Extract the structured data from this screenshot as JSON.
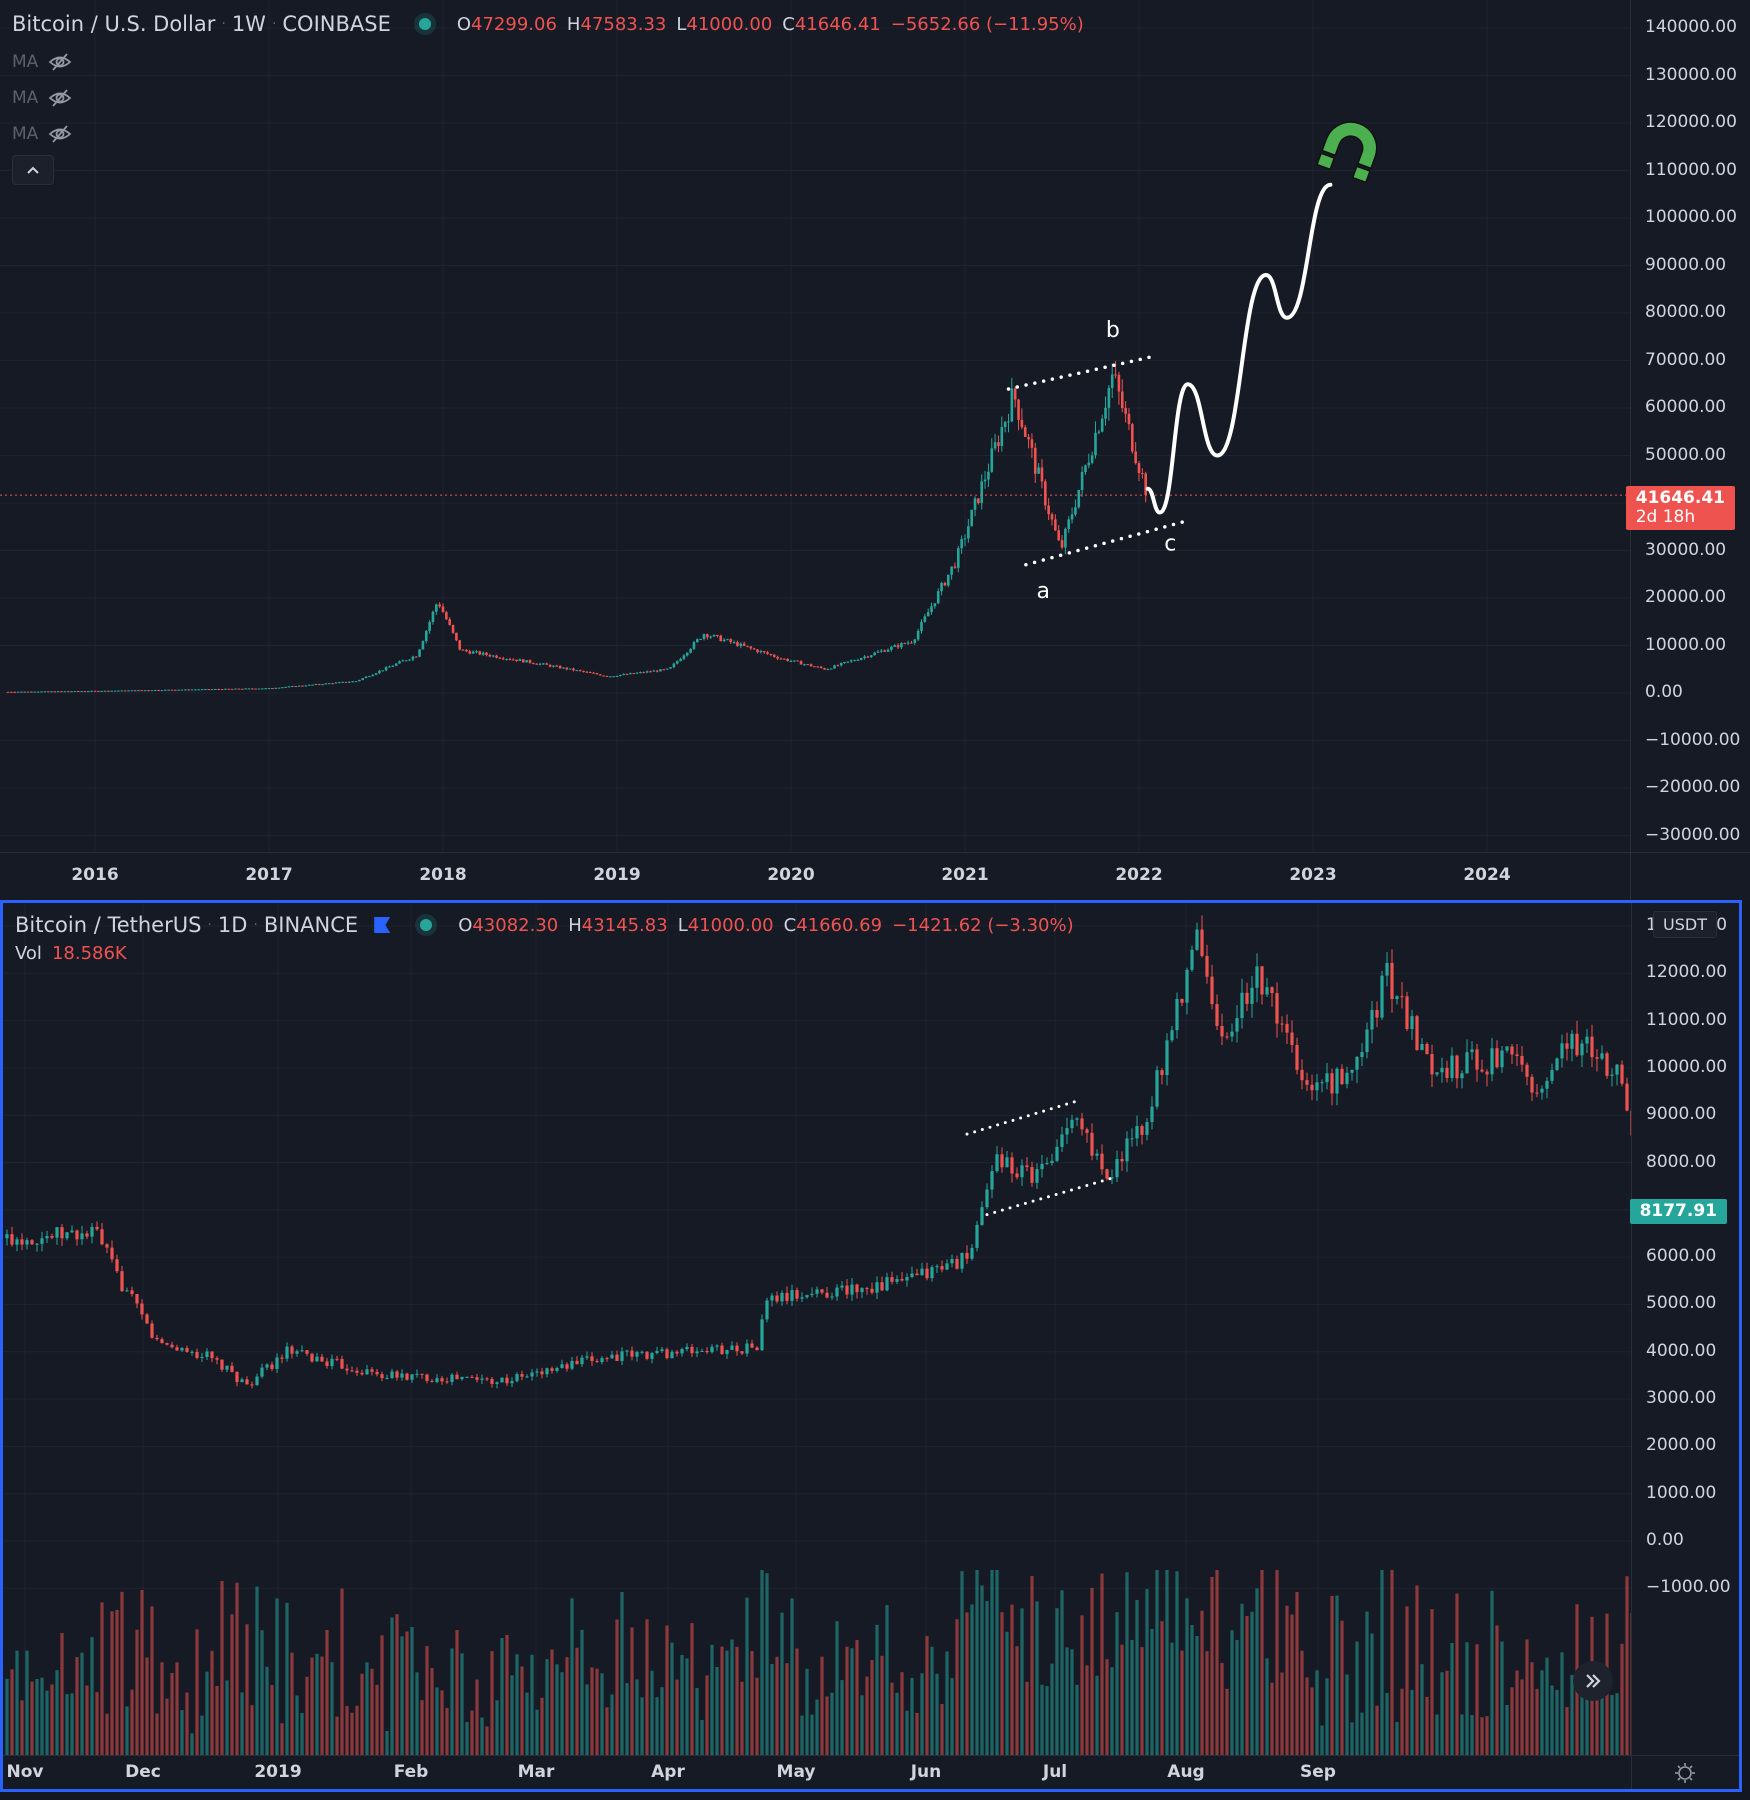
{
  "colors": {
    "up": "#26a69a",
    "down": "#ef5350",
    "background": "#161a25",
    "grid": "#1f2330",
    "axis_text": "#d1d4dc",
    "active_pane_border": "#2962ff",
    "drawing": "#ffffff",
    "magnet": "#4caf50",
    "price_line": "#ef5350"
  },
  "top_pane": {
    "legend": {
      "symbol": "Bitcoin / U.S. Dollar",
      "interval": "1W",
      "exchange": "COINBASE",
      "ohlc": {
        "open_label": "O",
        "open": "47299.06",
        "high_label": "H",
        "high": "47583.33",
        "low_label": "L",
        "low": "41000.00",
        "close_label": "C",
        "close": "41646.41",
        "change": "−5652.66 (−11.95%)"
      }
    },
    "indicators": [
      {
        "label": "MA",
        "visibility_icon": "eye-off-icon"
      },
      {
        "label": "MA",
        "visibility_icon": "eye-off-icon"
      },
      {
        "label": "MA",
        "visibility_icon": "eye-off-icon"
      }
    ],
    "collapse_icon": "chevron-up-icon",
    "price_tag": {
      "value": "41646.41",
      "countdown": "2d 18h"
    },
    "annotations": {
      "a": "a",
      "b": "b",
      "c": "c"
    },
    "magnet_icon": "magnet-icon"
  },
  "bottom_pane": {
    "legend": {
      "symbol": "Bitcoin / TetherUS",
      "interval": "1D",
      "exchange": "BINANCE",
      "ohlc": {
        "open_label": "O",
        "open": "43082.30",
        "high_label": "H",
        "high": "43145.83",
        "low_label": "L",
        "low": "41000.00",
        "close_label": "C",
        "close": "41660.69",
        "change": "−1421.62 (−3.30%)"
      }
    },
    "volume": {
      "label": "Vol",
      "value": "18.586K"
    },
    "currency_badge": "USDT",
    "price_tag": {
      "value": "8177.91"
    },
    "scroll_button_icon": "double-chevron-right-icon",
    "settings_icon": "gear-icon"
  },
  "chart_data": [
    {
      "type": "candlestick",
      "title": "Bitcoin / U.S. Dollar · 1W · COINBASE",
      "xlabel": "",
      "ylabel": "",
      "x_ticks": [
        "2016",
        "2017",
        "2018",
        "2019",
        "2020",
        "2021",
        "2022",
        "2023",
        "2024"
      ],
      "y_ticks": [
        "140000.00",
        "130000.00",
        "120000.00",
        "110000.00",
        "100000.00",
        "90000.00",
        "80000.00",
        "70000.00",
        "60000.00",
        "50000.00",
        "30000.00",
        "20000.00",
        "10000.00",
        "0.00",
        "−10000.00",
        "−20000.00",
        "−30000.00"
      ],
      "ylim": [
        -30000,
        140000
      ],
      "grid": true,
      "last_price": 41646.41,
      "price_path_anchors": [
        {
          "x": "2015.5",
          "price": 250
        },
        {
          "x": "2016.0",
          "price": 430
        },
        {
          "x": "2017.0",
          "price": 1000
        },
        {
          "x": "2017.5",
          "price": 2500
        },
        {
          "x": "2017.85",
          "price": 8000
        },
        {
          "x": "2017.97",
          "price": 19500
        },
        {
          "x": "2018.1",
          "price": 9000
        },
        {
          "x": "2018.5",
          "price": 6500
        },
        {
          "x": "2018.95",
          "price": 3500
        },
        {
          "x": "2019.3",
          "price": 5000
        },
        {
          "x": "2019.5",
          "price": 12500
        },
        {
          "x": "2019.95",
          "price": 7200
        },
        {
          "x": "2020.2",
          "price": 5000
        },
        {
          "x": "2020.7",
          "price": 11000
        },
        {
          "x": "2020.95",
          "price": 28000
        },
        {
          "x": "2021.28",
          "price": 63000
        },
        {
          "x": "2021.55",
          "price": 30000
        },
        {
          "x": "2021.85",
          "price": 67000
        },
        {
          "x": "2022.05",
          "price": 41646
        }
      ],
      "drawings": {
        "channel_upper": [
          {
            "x": "2021.25",
            "price": 64000
          },
          {
            "x": "2022.1",
            "price": 71000
          }
        ],
        "channel_lower": [
          {
            "x": "2021.35",
            "price": 27000
          },
          {
            "x": "2022.25",
            "price": 36000
          }
        ],
        "labels": [
          {
            "text": "b",
            "x": "2021.85",
            "price": 75000
          },
          {
            "text": "a",
            "x": "2021.45",
            "price": 20000
          },
          {
            "text": "c",
            "x": "2022.18",
            "price": 30000
          }
        ],
        "projection_path": [
          {
            "x": "2022.05",
            "price": 43000
          },
          {
            "x": "2022.12",
            "price": 38000
          },
          {
            "x": "2022.28",
            "price": 65000
          },
          {
            "x": "2022.45",
            "price": 50000
          },
          {
            "x": "2022.73",
            "price": 88000
          },
          {
            "x": "2022.85",
            "price": 79000
          },
          {
            "x": "2023.1",
            "price": 107000
          }
        ]
      }
    },
    {
      "type": "candlestick",
      "title": "Bitcoin / TetherUS · 1D · BINANCE",
      "xlabel": "",
      "ylabel": "",
      "x_ticks": [
        "Nov",
        "Dec",
        "2019",
        "Feb",
        "Mar",
        "Apr",
        "May",
        "Jun",
        "Jul",
        "Aug",
        "Sep"
      ],
      "y_ticks": [
        "13000.00",
        "12000.00",
        "11000.00",
        "10000.00",
        "9000.00",
        "8000.00",
        "7000.00",
        "6000.00",
        "5000.00",
        "4000.00",
        "3000.00",
        "2000.00",
        "1000.00",
        "0.00",
        "−1000.00"
      ],
      "ylim": [
        -1000,
        13000
      ],
      "grid": true,
      "last_price": 8177.91,
      "volume_last": "18.586K",
      "price_path_anchors": [
        {
          "day": 0,
          "price": 6400
        },
        {
          "day": 18,
          "price": 6500
        },
        {
          "day": 22,
          "price": 5600
        },
        {
          "day": 30,
          "price": 4200
        },
        {
          "day": 40,
          "price": 3900
        },
        {
          "day": 48,
          "price": 3300
        },
        {
          "day": 56,
          "price": 4000
        },
        {
          "day": 75,
          "price": 3500
        },
        {
          "day": 100,
          "price": 3400
        },
        {
          "day": 120,
          "price": 3900
        },
        {
          "day": 150,
          "price": 4100
        },
        {
          "day": 152,
          "price": 5100
        },
        {
          "day": 180,
          "price": 5500
        },
        {
          "day": 192,
          "price": 6000
        },
        {
          "day": 198,
          "price": 8000
        },
        {
          "day": 205,
          "price": 7800
        },
        {
          "day": 214,
          "price": 8800
        },
        {
          "day": 220,
          "price": 7700
        },
        {
          "day": 228,
          "price": 8900
        },
        {
          "day": 238,
          "price": 12800
        },
        {
          "day": 243,
          "price": 10500
        },
        {
          "day": 250,
          "price": 12100
        },
        {
          "day": 260,
          "price": 9500
        },
        {
          "day": 268,
          "price": 9800
        },
        {
          "day": 276,
          "price": 11900
        },
        {
          "day": 285,
          "price": 10000
        },
        {
          "day": 300,
          "price": 10200
        },
        {
          "day": 306,
          "price": 9500
        },
        {
          "day": 312,
          "price": 10600
        },
        {
          "day": 322,
          "price": 10000
        },
        {
          "day": 326,
          "price": 8177
        }
      ],
      "drawings": {
        "channel_upper": [
          {
            "day": 192,
            "price": 8600
          },
          {
            "day": 214,
            "price": 9300
          }
        ],
        "channel_lower": [
          {
            "day": 196,
            "price": 6900
          },
          {
            "day": 222,
            "price": 7700
          }
        ]
      }
    }
  ]
}
